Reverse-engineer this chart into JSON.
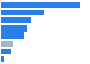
{
  "values": [
    85,
    47,
    33,
    28,
    25,
    14,
    11,
    4
  ],
  "bar_colors": [
    "#2b7de9",
    "#2b7de9",
    "#2b7de9",
    "#2b7de9",
    "#2b7de9",
    "#a8b4c0",
    "#2b7de9",
    "#2b7de9"
  ],
  "background_color": "#ffffff",
  "xlim": [
    0,
    95
  ],
  "bar_height": 0.78,
  "grid_color": "#d0d0d0"
}
